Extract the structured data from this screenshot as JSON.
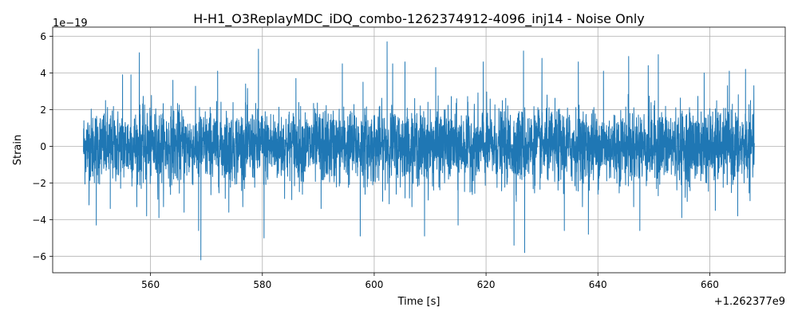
{
  "chart_data": {
    "type": "line",
    "title": "H-H1_O3ReplayMDC_iDQ_combo-1262374912-4096_inj14 - Noise Only",
    "xlabel": "Time [s]",
    "ylabel": "Strain",
    "x_offset_label": "+1.262377e9",
    "y_scale_label": "1e−19",
    "xlim": [
      542.5,
      673.5
    ],
    "ylim": [
      -6.9,
      6.5
    ],
    "xticks": [
      560,
      580,
      600,
      620,
      640,
      660
    ],
    "yticks": [
      -6,
      -4,
      -2,
      0,
      2,
      4,
      6
    ],
    "xtick_labels": [
      "560",
      "580",
      "600",
      "620",
      "640",
      "660"
    ],
    "ytick_labels": [
      "−6",
      "−4",
      "−2",
      "0",
      "2",
      "4",
      "6"
    ],
    "grid": true,
    "series": [
      {
        "color": "#1f77b4",
        "x_range": [
          548,
          668
        ],
        "typical_envelope": [
          -2.2,
          2.2
        ],
        "extreme_points": [
          {
            "x": 549.0,
            "y": -3.2
          },
          {
            "x": 550.3,
            "y": -4.3
          },
          {
            "x": 552.8,
            "y": -3.4
          },
          {
            "x": 555.0,
            "y": 3.9
          },
          {
            "x": 556.5,
            "y": 3.9
          },
          {
            "x": 558.0,
            "y": 5.1
          },
          {
            "x": 559.3,
            "y": -3.8
          },
          {
            "x": 561.5,
            "y": -3.9
          },
          {
            "x": 564.0,
            "y": 3.6
          },
          {
            "x": 566.0,
            "y": -3.6
          },
          {
            "x": 568.6,
            "y": -4.6
          },
          {
            "x": 569.0,
            "y": -6.2
          },
          {
            "x": 572.0,
            "y": 4.1
          },
          {
            "x": 574.0,
            "y": -3.6
          },
          {
            "x": 577.0,
            "y": 3.4
          },
          {
            "x": 579.3,
            "y": 5.3
          },
          {
            "x": 580.3,
            "y": -5.0
          },
          {
            "x": 586.0,
            "y": 3.7
          },
          {
            "x": 590.5,
            "y": -3.4
          },
          {
            "x": 594.3,
            "y": 4.5
          },
          {
            "x": 597.5,
            "y": -4.9
          },
          {
            "x": 598.0,
            "y": 3.5
          },
          {
            "x": 602.3,
            "y": 5.7
          },
          {
            "x": 603.3,
            "y": 4.5
          },
          {
            "x": 605.5,
            "y": 4.6
          },
          {
            "x": 609.0,
            "y": -4.9
          },
          {
            "x": 611.0,
            "y": 4.3
          },
          {
            "x": 615.0,
            "y": -4.3
          },
          {
            "x": 619.5,
            "y": 4.6
          },
          {
            "x": 625.0,
            "y": -5.4
          },
          {
            "x": 626.7,
            "y": 5.2
          },
          {
            "x": 626.9,
            "y": -5.8
          },
          {
            "x": 630.0,
            "y": 4.8
          },
          {
            "x": 634.0,
            "y": -4.6
          },
          {
            "x": 636.5,
            "y": 4.6
          },
          {
            "x": 638.3,
            "y": -4.8
          },
          {
            "x": 641.0,
            "y": 4.1
          },
          {
            "x": 645.5,
            "y": 4.9
          },
          {
            "x": 647.5,
            "y": -4.6
          },
          {
            "x": 649.0,
            "y": 4.4
          },
          {
            "x": 650.8,
            "y": 5.0
          },
          {
            "x": 655.0,
            "y": -3.9
          },
          {
            "x": 659.0,
            "y": 4.0
          },
          {
            "x": 661.0,
            "y": -3.5
          },
          {
            "x": 663.5,
            "y": 4.1
          },
          {
            "x": 665.0,
            "y": -3.8
          },
          {
            "x": 666.4,
            "y": 4.2
          },
          {
            "x": 667.2,
            "y": -2.4
          }
        ]
      }
    ]
  }
}
